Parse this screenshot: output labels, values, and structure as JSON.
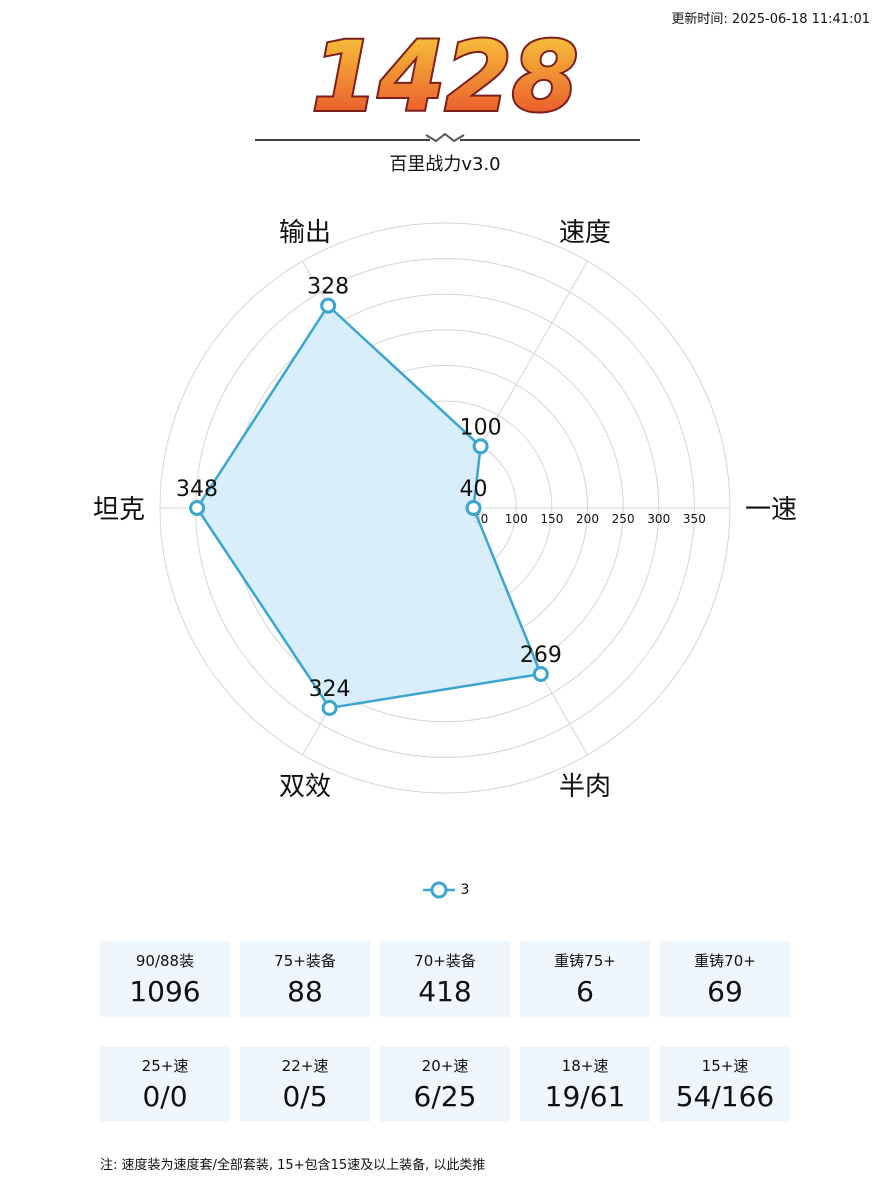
{
  "update_time": "更新时间: 2025-06-18 11:41:01",
  "score": "1428",
  "subtitle": "百里战力v3.0",
  "colors": {
    "series_line": "#3aa5d2",
    "series_fill": "#d4ecf9",
    "card_bg": "#eff7fd",
    "score_fill_top": "#f7d23c",
    "score_fill_bottom": "#e8452a",
    "score_outline": "#7a1f1a"
  },
  "chart_data": {
    "type": "radar",
    "axes": [
      "一速",
      "速度",
      "输出",
      "坦克",
      "双效",
      "半肉"
    ],
    "radial_ticks": [
      50,
      100,
      150,
      200,
      250,
      300,
      350
    ],
    "rmax": 400,
    "grid": true,
    "series": [
      {
        "name": "3",
        "values": [
          40,
          100,
          328,
          348,
          324,
          269
        ]
      }
    ],
    "legend": "bottom-center"
  },
  "stats_row1": [
    {
      "label": "90/88装",
      "value": "1096"
    },
    {
      "label": "75+装备",
      "value": "88"
    },
    {
      "label": "70+装备",
      "value": "418"
    },
    {
      "label": "重铸75+",
      "value": "6"
    },
    {
      "label": "重铸70+",
      "value": "69"
    }
  ],
  "stats_row2": [
    {
      "label": "25+速",
      "value": "0/0"
    },
    {
      "label": "22+速",
      "value": "0/5"
    },
    {
      "label": "20+速",
      "value": "6/25"
    },
    {
      "label": "18+速",
      "value": "19/61"
    },
    {
      "label": "15+速",
      "value": "54/166"
    }
  ],
  "note": "注: 速度装为速度套/全部套装, 15+包含15速及以上装备, 以此类推"
}
